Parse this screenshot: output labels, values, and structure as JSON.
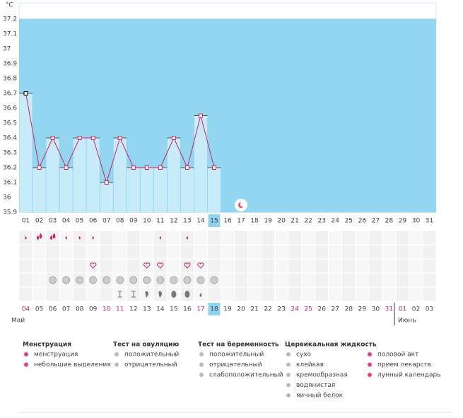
{
  "chart_data": {
    "type": "line",
    "y_label": "°C",
    "categories": [
      "01",
      "02",
      "03",
      "04",
      "05",
      "06",
      "07",
      "08",
      "09",
      "10",
      "11",
      "12",
      "13",
      "14",
      "15",
      "16",
      "17",
      "18",
      "19",
      "20",
      "21",
      "22",
      "23",
      "24",
      "25",
      "26",
      "27",
      "28",
      "29",
      "30",
      "31"
    ],
    "values": [
      36.7,
      36.2,
      36.4,
      36.2,
      36.4,
      36.4,
      36.1,
      36.4,
      36.2,
      36.2,
      36.2,
      36.4,
      36.2,
      36.55,
      36.2,
      null,
      null,
      null,
      null,
      null,
      null,
      null,
      null,
      null,
      null,
      null,
      null,
      null,
      null,
      null,
      null
    ],
    "color": "#d3245b",
    "bar_color": "#c8ebfa",
    "background": "#92d6f1",
    "ylim": [
      35.9,
      37.2
    ],
    "yticks": [
      35.9,
      36,
      36.1,
      36.2,
      36.3,
      36.4,
      36.5,
      36.6,
      36.7,
      36.8,
      36.9,
      37,
      37.1,
      37.2
    ]
  },
  "calendar": {
    "dates": [
      {
        "label": "04",
        "color": "#d3245b"
      },
      {
        "label": "05",
        "color": "#444"
      },
      {
        "label": "06",
        "color": "#444"
      },
      {
        "label": "07",
        "color": "#444"
      },
      {
        "label": "08",
        "color": "#444"
      },
      {
        "label": "09",
        "color": "#444"
      },
      {
        "label": "10",
        "color": "#d3245b"
      },
      {
        "label": "11",
        "color": "#d3245b"
      },
      {
        "label": "12",
        "color": "#444"
      },
      {
        "label": "13",
        "color": "#444"
      },
      {
        "label": "14",
        "color": "#444"
      },
      {
        "label": "15",
        "color": "#444"
      },
      {
        "label": "16",
        "color": "#444"
      },
      {
        "label": "17",
        "color": "#d3245b"
      },
      {
        "label": "18",
        "color": "#444"
      },
      {
        "label": "19",
        "color": "#444"
      },
      {
        "label": "20",
        "color": "#444"
      },
      {
        "label": "21",
        "color": "#444"
      },
      {
        "label": "22",
        "color": "#444"
      },
      {
        "label": "23",
        "color": "#444"
      },
      {
        "label": "24",
        "color": "#d3245b"
      },
      {
        "label": "25",
        "color": "#d3245b"
      },
      {
        "label": "26",
        "color": "#444"
      },
      {
        "label": "27",
        "color": "#444"
      },
      {
        "label": "28",
        "color": "#444"
      },
      {
        "label": "29",
        "color": "#444"
      },
      {
        "label": "30",
        "color": "#444"
      },
      {
        "label": "31",
        "color": "#d3245b"
      },
      {
        "label": "01",
        "color": "#d3245b"
      },
      {
        "label": "02",
        "color": "#444"
      },
      {
        "label": "03",
        "color": "#444"
      }
    ],
    "months": [
      "Май",
      "Июнь"
    ]
  },
  "legend": [
    {
      "title": "Менструация",
      "items": [
        "менструация",
        "небольшие выделения"
      ]
    },
    {
      "title": "Тест на овуляцию",
      "items": [
        "положительный",
        "отрицательный"
      ]
    },
    {
      "title": "Тест на беременность",
      "items": [
        "положительный",
        "отрицательный",
        "слабоположительный"
      ]
    },
    {
      "title": "Цервикальная жидкость",
      "items": [
        "сухо",
        "клейкая",
        "кремообразная",
        "водянистая",
        "яичный белок"
      ]
    },
    {
      "items": [
        "половой акт",
        "прием лекарств",
        "лунный календарь"
      ]
    }
  ]
}
